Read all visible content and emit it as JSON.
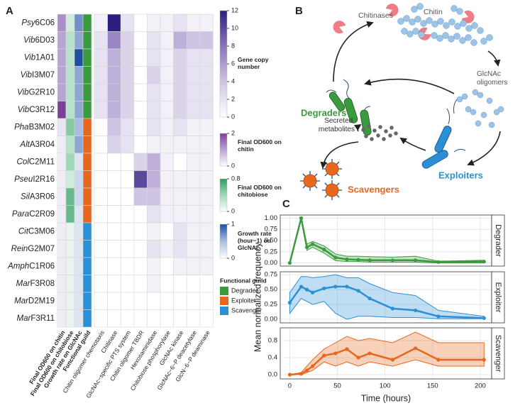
{
  "panel_labels": [
    "A",
    "B",
    "C"
  ],
  "chart_data": [
    {
      "type": "heatmap",
      "rows": [
        "Psy6C06",
        "Vib6D03",
        "Vib1A01",
        "VibI3M07",
        "VibG2R10",
        "VibC3R12",
        "PhaB3M02",
        "AltA3R04",
        "ColC2M11",
        "PseuI2R16",
        "SilA3R06",
        "ParaC2R09",
        "CitC3M06",
        "ReinG2M07",
        "AmphC1R06",
        "MarF3R08",
        "MarD2M19",
        "MarF3R11"
      ],
      "annotation_columns": [
        {
          "name": "Final OD600 on chitin",
          "legend_title": "Final OD600 on chitin",
          "colors": [
            "#ffffff",
            "#b9a3d3",
            "#7b3f98"
          ],
          "lim": [
            0,
            2
          ],
          "ticks": [
            0,
            2
          ],
          "values": [
            1.2,
            1.0,
            1.0,
            1.0,
            1.0,
            2.0,
            0.3,
            0.2,
            0.2,
            0.2,
            0.2,
            0.2,
            0.2,
            0.2,
            0.2,
            0.2,
            0.2,
            0.2
          ]
        },
        {
          "name": "Final OD600 on chitobiose",
          "legend_title": "Final OD600 on chitobiose",
          "colors": [
            "#ffffff",
            "#9fd8b8",
            "#2e9a5e"
          ],
          "lim": [
            0,
            0.8
          ],
          "ticks": [
            0,
            0.8
          ],
          "values": [
            0.2,
            0.3,
            0.3,
            0.3,
            0.3,
            0.3,
            0.5,
            0.3,
            0.4,
            0.2,
            0.6,
            0.6,
            0.1,
            0.1,
            0.1,
            0.1,
            0.1,
            0.1
          ]
        },
        {
          "name": "Growth rate on GlcNAc",
          "legend_title": "Growth rate (hour−1) on GlcNAc",
          "colors": [
            "#ffffff",
            "#a9bddf",
            "#1f4fa0"
          ],
          "lim": [
            0,
            1
          ],
          "ticks": [
            0,
            1
          ],
          "values": [
            0.7,
            0.6,
            1.0,
            0.6,
            0.6,
            0.6,
            0.5,
            0.6,
            0.2,
            0.3,
            0.3,
            0.2,
            0.2,
            0.2,
            0.2,
            0.2,
            0.2,
            0.2
          ]
        }
      ],
      "guild": {
        "name": "Functional guild",
        "legend_title": "Functional guild",
        "categories": [
          "Degrader",
          "Exploiter",
          "Scavenger"
        ],
        "colors": [
          "#3a9a3d",
          "#e8671e",
          "#2b8fd6"
        ],
        "values": [
          "Degrader",
          "Degrader",
          "Degrader",
          "Degrader",
          "Degrader",
          "Degrader",
          "Exploiter",
          "Exploiter",
          "Exploiter",
          "Exploiter",
          "Exploiter",
          "Exploiter",
          "Scavenger",
          "Scavenger",
          "Scavenger",
          "Scavenger",
          "Scavenger",
          "Scavenger"
        ]
      },
      "genes": {
        "legend_title": "Gene copy number",
        "colors": [
          "#ffffff",
          "#cfc4e3",
          "#8a73b8",
          "#2d1f7d"
        ],
        "lim": [
          0,
          12
        ],
        "ticks": [
          0,
          2,
          4,
          6,
          8,
          10,
          12
        ],
        "names": [
          "Chitin oligomer chemotaxis",
          "Chitinase",
          "GlcNAc−specific PTS system",
          "Chitin oligomer TBDR",
          "Hexosaminidase",
          "Chitobiose phosphorylase",
          "GlcNAc kinase",
          "GlcNAc−6−P deacetylase",
          "GlcN−6−P deaminase"
        ],
        "values": [
          [
            1,
            12,
            2,
            0,
            1,
            1,
            2,
            1,
            1
          ],
          [
            2,
            7,
            3,
            0,
            2,
            1,
            5,
            4,
            4
          ],
          [
            2,
            5,
            3,
            0,
            2,
            1,
            3,
            2,
            2
          ],
          [
            2,
            5,
            3,
            0,
            3,
            1,
            3,
            2,
            2
          ],
          [
            2,
            5,
            3,
            0,
            2,
            1,
            3,
            2,
            2
          ],
          [
            2,
            5,
            3,
            0,
            2,
            1,
            3,
            2,
            2
          ],
          [
            0,
            4,
            2,
            0,
            2,
            1,
            2,
            1,
            1
          ],
          [
            0,
            3,
            2,
            0,
            1,
            1,
            1,
            1,
            1
          ],
          [
            0,
            0,
            0,
            3,
            5,
            1,
            0,
            1,
            1
          ],
          [
            0,
            0,
            0,
            10,
            5,
            1,
            1,
            1,
            1
          ],
          [
            0,
            0,
            0,
            4,
            4,
            1,
            1,
            1,
            1
          ],
          [
            0,
            0,
            0,
            0,
            2,
            1,
            1,
            1,
            1
          ],
          [
            0,
            0,
            0,
            0,
            1,
            0,
            2,
            1,
            1
          ],
          [
            0,
            0,
            0,
            0,
            2,
            1,
            2,
            1,
            1
          ],
          [
            0,
            0,
            0,
            0,
            1,
            0,
            1,
            1,
            1
          ],
          [
            0,
            0,
            0,
            0,
            1,
            0,
            0,
            0,
            0
          ],
          [
            0,
            0,
            0,
            0,
            0,
            0,
            0,
            0,
            0
          ],
          [
            0,
            0,
            0,
            0,
            0,
            0,
            0,
            0,
            0
          ]
        ]
      }
    },
    {
      "type": "line",
      "title": "Degrader",
      "x": [
        0,
        12,
        18,
        24,
        36,
        48,
        60,
        72,
        84,
        108,
        132,
        156,
        204
      ],
      "series": [
        {
          "color": "#3a9a3d",
          "values": [
            0,
            1.0,
            0.35,
            0.42,
            0.3,
            0.12,
            0.08,
            0.07,
            0.06,
            0.06,
            0.06,
            0.02,
            0.03
          ],
          "lower": [
            0,
            1.0,
            0.28,
            0.35,
            0.22,
            0.05,
            0.03,
            0.03,
            0.02,
            0.02,
            0.02,
            0,
            0
          ],
          "upper": [
            0,
            1.0,
            0.42,
            0.48,
            0.38,
            0.2,
            0.15,
            0.15,
            0.14,
            0.13,
            0.15,
            0.04,
            0.06
          ]
        }
      ],
      "xlim": [
        -10,
        212
      ],
      "xticks": [
        0,
        50,
        100,
        150,
        200
      ],
      "ylim": [
        -0.07,
        1.07
      ],
      "yticks": [
        {
          "value": 0,
          "label": "0.00"
        },
        {
          "value": 0.25,
          "label": "0.25"
        },
        {
          "value": 0.5,
          "label": "0.50"
        },
        {
          "value": 0.75,
          "label": "0.75"
        },
        {
          "value": 1,
          "label": "1.00"
        }
      ],
      "grid": true
    },
    {
      "type": "line",
      "title": "Exploiter",
      "ylabel": "Mean normalized frequency",
      "x": [
        0,
        12,
        18,
        24,
        36,
        48,
        60,
        72,
        84,
        108,
        132,
        156,
        204
      ],
      "series": [
        {
          "color": "#2b8fd6",
          "values": [
            0.28,
            0.55,
            0.5,
            0.45,
            0.52,
            0.55,
            0.55,
            0.48,
            0.35,
            0.18,
            0.15,
            0.05,
            0.02
          ],
          "lower": [
            0.1,
            0.35,
            0.3,
            0.25,
            0.3,
            0.1,
            0.0,
            0.05,
            0.05,
            0.03,
            0.03,
            0.01,
            0.01
          ],
          "upper": [
            0.45,
            0.72,
            0.72,
            0.7,
            0.72,
            0.75,
            0.7,
            0.7,
            0.6,
            0.45,
            0.4,
            0.15,
            0.05
          ]
        }
      ],
      "xlim": [
        -10,
        212
      ],
      "xticks": [
        0,
        50,
        100,
        150,
        200
      ],
      "ylim": [
        -0.06,
        0.8
      ],
      "yticks": [
        {
          "value": 0,
          "label": "0.00"
        },
        {
          "value": 0.25,
          "label": "0.25"
        },
        {
          "value": 0.5,
          "label": "0.50"
        },
        {
          "value": 0.75,
          "label": "0.75"
        }
      ],
      "grid": true
    },
    {
      "type": "line",
      "title": "Scavenger",
      "xlabel": "Time (hours)",
      "x": [
        0,
        12,
        18,
        24,
        36,
        48,
        60,
        72,
        84,
        108,
        132,
        156,
        204
      ],
      "series": [
        {
          "color": "#e8671e",
          "values": [
            0,
            0.02,
            0.1,
            0.2,
            0.45,
            0.5,
            0.6,
            0.4,
            0.5,
            0.35,
            0.62,
            0.35,
            0.35
          ],
          "lower": [
            0,
            0,
            0.05,
            0.1,
            0.3,
            0.2,
            0.3,
            0.2,
            0.3,
            0.2,
            0.35,
            0.2,
            0.2
          ],
          "upper": [
            0,
            0.05,
            0.2,
            0.35,
            0.6,
            0.75,
            0.9,
            0.8,
            0.85,
            0.75,
            1.0,
            0.75,
            0.75
          ]
        }
      ],
      "xlim": [
        -10,
        212
      ],
      "xticks": [
        0,
        50,
        100,
        150,
        200
      ],
      "ylim": [
        -0.1,
        1.1
      ],
      "yticks": [
        {
          "value": 0,
          "label": "0.0"
        },
        {
          "value": 0.4,
          "label": "0.4"
        },
        {
          "value": 0.8,
          "label": "0.8"
        }
      ],
      "grid": true
    }
  ],
  "diagram": {
    "chitinases": "Chitinases",
    "chitin": "Chitin",
    "oligomers": "GlcNAc oligomers",
    "degraders": "Degraders",
    "metabolites": "Secreted metabolites",
    "exploiters": "Exploiters",
    "scavengers": "Scavengers"
  }
}
